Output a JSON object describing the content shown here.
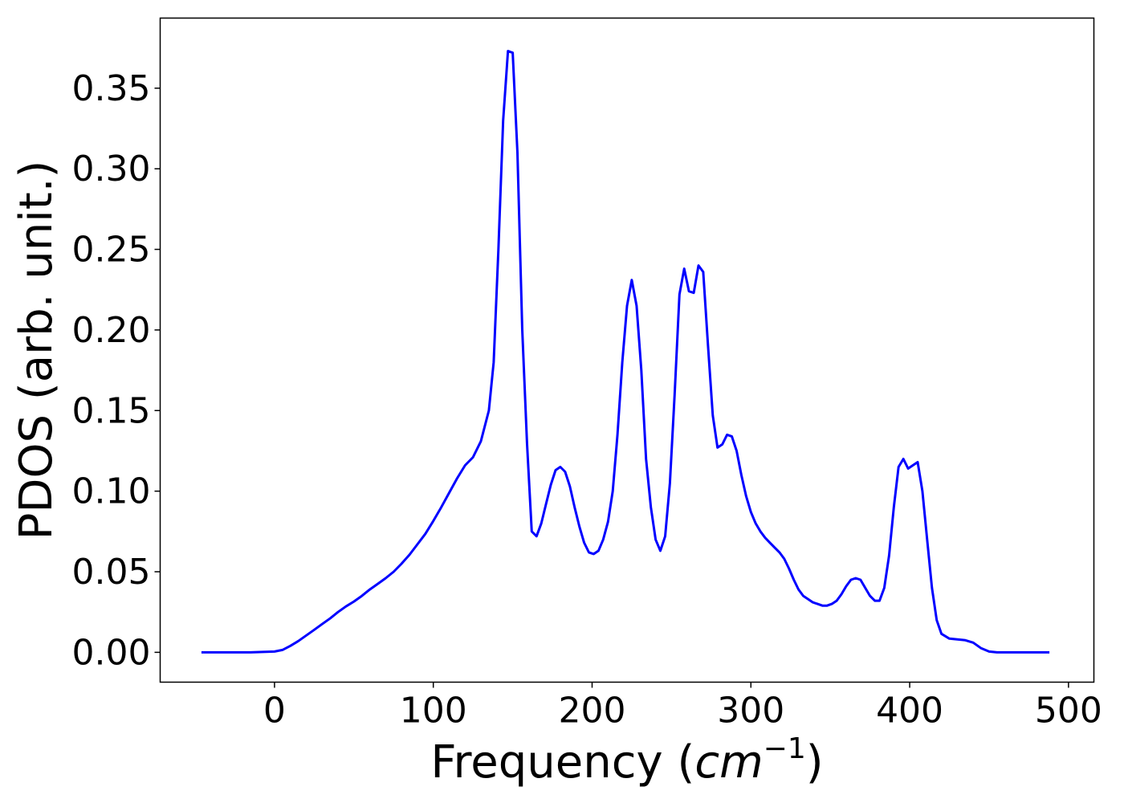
{
  "chart_data": {
    "type": "line",
    "title": "",
    "xlabel": "Frequency",
    "xlabel_unit_base": "cm",
    "xlabel_unit_exp": "−1",
    "ylabel": "PDOS (arb. unit.)",
    "xlim": [
      -72,
      516
    ],
    "ylim": [
      -0.0185,
      0.3935
    ],
    "grid": false,
    "legend": "none",
    "x_ticks": [
      0,
      100,
      200,
      300,
      400,
      500
    ],
    "x_tick_labels": [
      "0",
      "100",
      "200",
      "300",
      "400",
      "500"
    ],
    "y_ticks": [
      0.0,
      0.05,
      0.1,
      0.15,
      0.2,
      0.25,
      0.3,
      0.35
    ],
    "y_tick_labels": [
      "0.00",
      "0.05",
      "0.10",
      "0.15",
      "0.20",
      "0.25",
      "0.30",
      "0.35"
    ],
    "series": [
      {
        "color": "#0000ff",
        "x": [
          -46,
          -30,
          -15,
          0,
          5,
          10,
          15,
          20,
          25,
          30,
          35,
          40,
          45,
          50,
          55,
          60,
          65,
          70,
          75,
          80,
          85,
          90,
          95,
          100,
          105,
          110,
          115,
          120,
          125,
          130,
          135,
          138,
          141,
          144,
          147,
          150,
          153,
          156,
          159,
          162,
          165,
          168,
          171,
          174,
          177,
          180,
          183,
          186,
          189,
          192,
          195,
          198,
          201,
          204,
          207,
          210,
          213,
          216,
          219,
          222,
          225,
          228,
          231,
          234,
          237,
          240,
          243,
          246,
          249,
          252,
          255,
          258,
          261,
          264,
          267,
          270,
          273,
          276,
          279,
          282,
          285,
          288,
          291,
          294,
          297,
          300,
          303,
          306,
          309,
          312,
          315,
          318,
          321,
          324,
          327,
          330,
          333,
          336,
          339,
          342,
          345,
          348,
          351,
          354,
          357,
          360,
          363,
          366,
          369,
          372,
          375,
          378,
          381,
          384,
          387,
          390,
          393,
          396,
          399,
          402,
          405,
          408,
          411,
          414,
          417,
          420,
          425,
          430,
          435,
          440,
          445,
          450,
          455,
          460,
          470,
          480,
          488
        ],
        "y": [
          0.0,
          0.0,
          0.0,
          0.0005,
          0.0015,
          0.004,
          0.007,
          0.0105,
          0.014,
          0.0175,
          0.021,
          0.025,
          0.0285,
          0.0315,
          0.035,
          0.039,
          0.0425,
          0.046,
          0.05,
          0.055,
          0.0605,
          0.067,
          0.0735,
          0.0815,
          0.09,
          0.099,
          0.108,
          0.116,
          0.121,
          0.131,
          0.15,
          0.18,
          0.25,
          0.33,
          0.373,
          0.372,
          0.31,
          0.2,
          0.13,
          0.075,
          0.072,
          0.08,
          0.092,
          0.104,
          0.113,
          0.115,
          0.112,
          0.103,
          0.09,
          0.078,
          0.068,
          0.062,
          0.061,
          0.063,
          0.07,
          0.081,
          0.1,
          0.135,
          0.18,
          0.215,
          0.231,
          0.215,
          0.175,
          0.12,
          0.09,
          0.07,
          0.063,
          0.072,
          0.105,
          0.16,
          0.222,
          0.238,
          0.224,
          0.223,
          0.24,
          0.236,
          0.19,
          0.147,
          0.127,
          0.129,
          0.135,
          0.134,
          0.125,
          0.11,
          0.097,
          0.087,
          0.08,
          0.075,
          0.071,
          0.068,
          0.065,
          0.062,
          0.058,
          0.052,
          0.045,
          0.039,
          0.035,
          0.033,
          0.031,
          0.03,
          0.029,
          0.029,
          0.03,
          0.032,
          0.036,
          0.041,
          0.045,
          0.046,
          0.045,
          0.04,
          0.035,
          0.032,
          0.032,
          0.04,
          0.06,
          0.09,
          0.115,
          0.12,
          0.114,
          0.116,
          0.118,
          0.1,
          0.07,
          0.04,
          0.02,
          0.0115,
          0.0085,
          0.008,
          0.0075,
          0.006,
          0.0025,
          0.0005,
          0.0,
          0.0,
          0.0,
          0.0,
          0.0
        ]
      }
    ]
  }
}
